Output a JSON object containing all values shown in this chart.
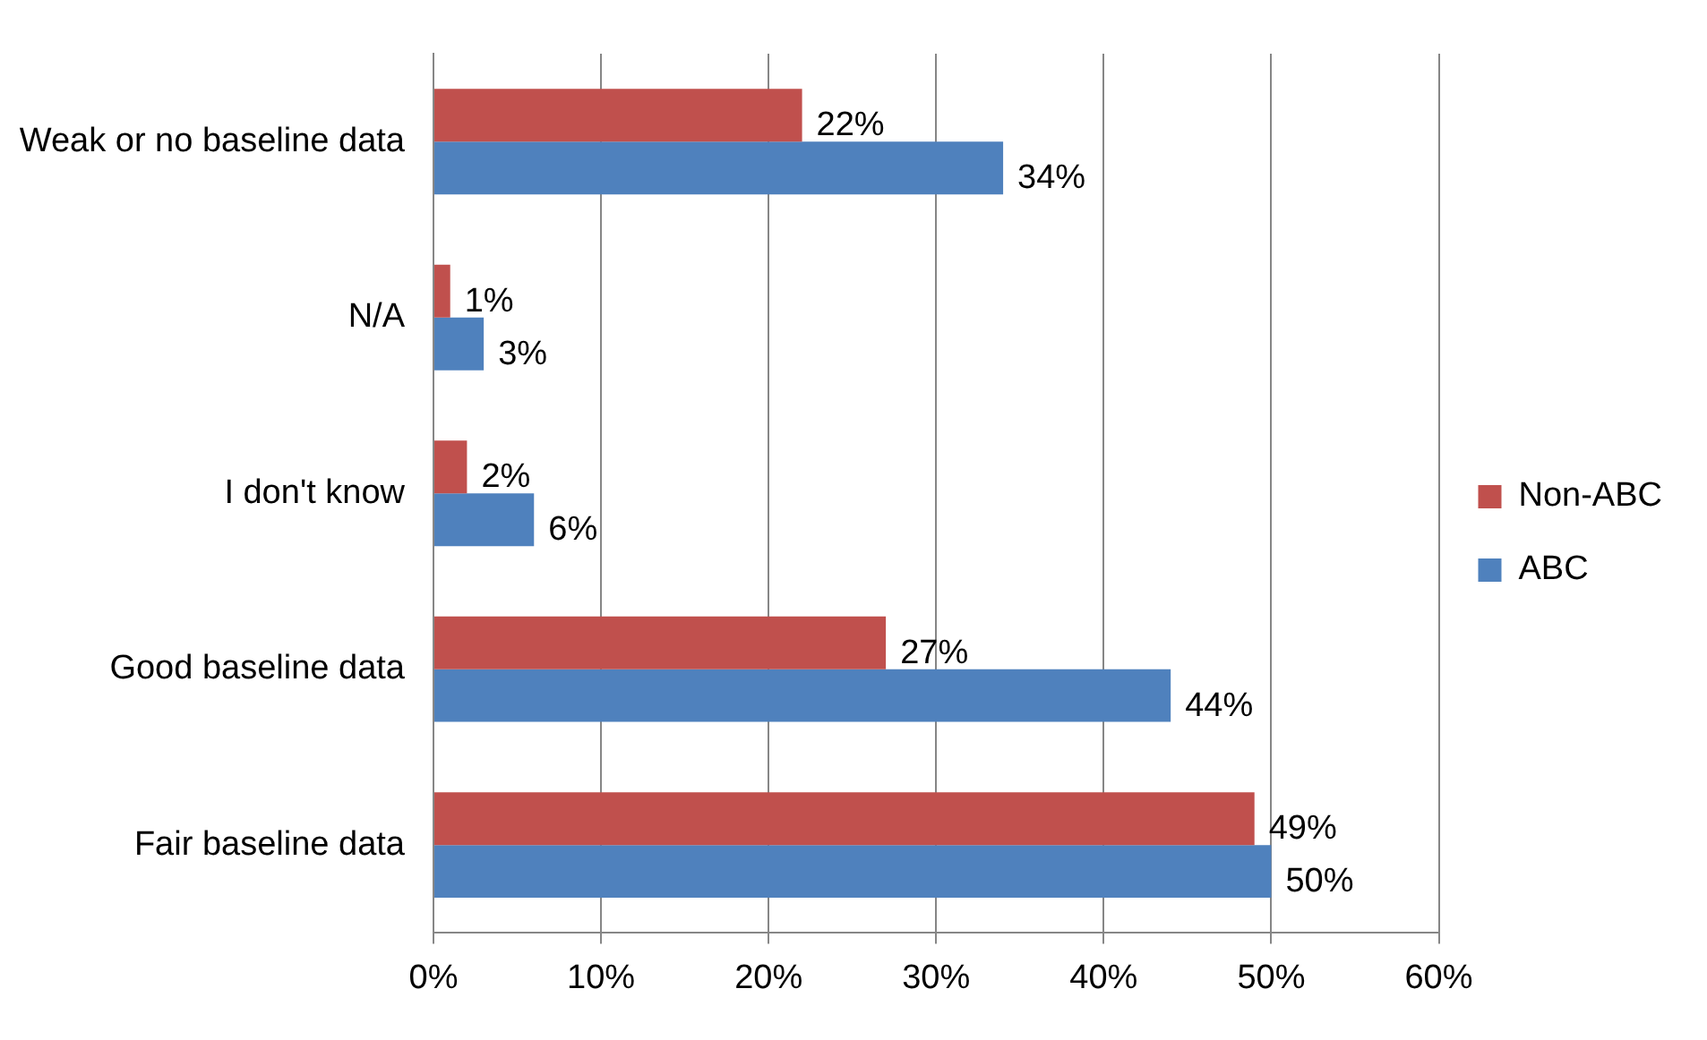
{
  "chart_data": {
    "type": "bar",
    "orientation": "horizontal",
    "categories": [
      "Weak or no baseline data",
      "N/A",
      "I don't know",
      "Good baseline data",
      "Fair baseline data"
    ],
    "series": [
      {
        "name": "Non-ABC",
        "color": "#c0504d",
        "values": [
          22,
          1,
          2,
          27,
          49
        ],
        "value_labels": [
          "22%",
          "1%",
          "2%",
          "27%",
          "49%"
        ]
      },
      {
        "name": "ABC",
        "color": "#4f81bd",
        "values": [
          34,
          3,
          6,
          44,
          50
        ],
        "value_labels": [
          "34%",
          "3%",
          "6%",
          "44%",
          "50%"
        ]
      }
    ],
    "xlim": [
      0,
      60
    ],
    "xticks": [
      {
        "value": 0,
        "label": "0%"
      },
      {
        "value": 10,
        "label": "10%"
      },
      {
        "value": 20,
        "label": "20%"
      },
      {
        "value": 30,
        "label": "30%"
      },
      {
        "value": 40,
        "label": "40%"
      },
      {
        "value": 50,
        "label": "50%"
      },
      {
        "value": 60,
        "label": "60%"
      }
    ],
    "grid": "x",
    "legend": "right"
  }
}
